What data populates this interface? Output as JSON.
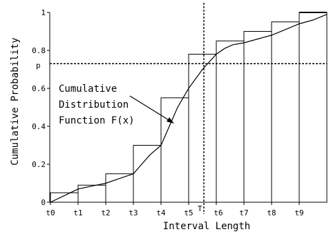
{
  "chart_data": {
    "type": "bar",
    "xlabel": "Interval Length",
    "ylabel": "Cumulative Probability",
    "ylim": [
      0,
      1
    ],
    "yticks": [
      {
        "value": 0,
        "label": "0"
      },
      {
        "value": 0.2,
        "label": "0.2"
      },
      {
        "value": 0.4,
        "label": "0.4"
      },
      {
        "value": 0.6,
        "label": "0.6"
      },
      {
        "value": 0.8,
        "label": "0.8"
      },
      {
        "value": 1,
        "label": "1"
      }
    ],
    "xticks": [
      {
        "label": "t0",
        "index": 0
      },
      {
        "label": "t1",
        "index": 1
      },
      {
        "label": "t2",
        "index": 2
      },
      {
        "label": "t3",
        "index": 3
      },
      {
        "label": "t4",
        "index": 4
      },
      {
        "label": "t5",
        "index": 5
      },
      {
        "label": "t6",
        "index": 6
      },
      {
        "label": "t7",
        "index": 7
      },
      {
        "label": "t8",
        "index": 8
      },
      {
        "label": "t9",
        "index": 9
      }
    ],
    "bars": [
      {
        "from": "t0",
        "to": "t1",
        "value": 0.05
      },
      {
        "from": "t1",
        "to": "t2",
        "value": 0.09
      },
      {
        "from": "t2",
        "to": "t3",
        "value": 0.15
      },
      {
        "from": "t3",
        "to": "t4",
        "value": 0.3
      },
      {
        "from": "t4",
        "to": "t5",
        "value": 0.55
      },
      {
        "from": "t5",
        "to": "t6",
        "value": 0.78
      },
      {
        "from": "t6",
        "to": "t7",
        "value": 0.85
      },
      {
        "from": "t7",
        "to": "t8",
        "value": 0.9
      },
      {
        "from": "t8",
        "to": "t9",
        "value": 0.95
      },
      {
        "from": "t9",
        "to": "end",
        "value": 1.0
      }
    ],
    "curve": {
      "name": "Cumulative Distribution Function F(x)",
      "points": [
        [
          0,
          0.0
        ],
        [
          0.5,
          0.035
        ],
        [
          1,
          0.07
        ],
        [
          1.5,
          0.085
        ],
        [
          2,
          0.1
        ],
        [
          2.5,
          0.125
        ],
        [
          3,
          0.15
        ],
        [
          3.3,
          0.2
        ],
        [
          3.6,
          0.25
        ],
        [
          4,
          0.3
        ],
        [
          4.3,
          0.4
        ],
        [
          4.6,
          0.5
        ],
        [
          5,
          0.6
        ],
        [
          5.5,
          0.7
        ],
        [
          6,
          0.78
        ],
        [
          6.3,
          0.81
        ],
        [
          6.6,
          0.83
        ],
        [
          7,
          0.84
        ],
        [
          7.5,
          0.86
        ],
        [
          8,
          0.88
        ],
        [
          8.5,
          0.91
        ],
        [
          9,
          0.94
        ],
        [
          9.5,
          0.96
        ],
        [
          10,
          0.99
        ]
      ]
    },
    "threshold_x": {
      "label": "T",
      "position": 5.45
    },
    "threshold_y": {
      "label": "p",
      "value": 0.73
    },
    "annotation": {
      "lines": [
        "Cumulative",
        "Distribution",
        "Function F(x)"
      ]
    },
    "grid": false
  }
}
